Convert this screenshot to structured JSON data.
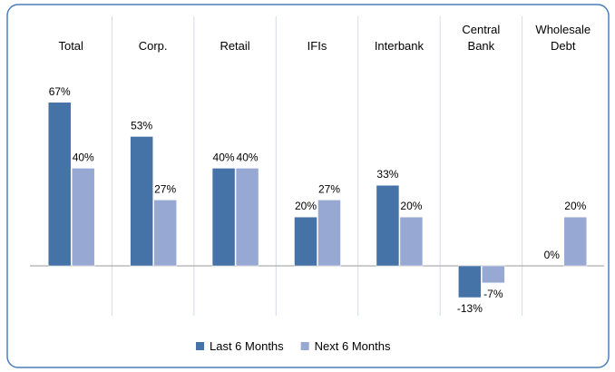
{
  "chart_data": {
    "type": "bar",
    "categories": [
      "Total",
      "Corp.",
      "Retail",
      "IFIs",
      "Interbank",
      "Central Bank",
      "Wholesale Debt"
    ],
    "series": [
      {
        "name": "Last 6 Months",
        "color": "#4572a7",
        "values": [
          67,
          53,
          40,
          20,
          33,
          -13,
          0
        ],
        "value_labels": [
          "67%",
          "53%",
          "40%",
          "20%",
          "33%",
          "-13%",
          "0%"
        ]
      },
      {
        "name": "Next 6 Months",
        "color": "#97a9d2",
        "values": [
          40,
          27,
          40,
          27,
          20,
          -7,
          20
        ],
        "value_labels": [
          "40%",
          "27%",
          "40%",
          "27%",
          "20%",
          "-7%",
          "20%"
        ]
      }
    ],
    "legend": "bottom"
  }
}
